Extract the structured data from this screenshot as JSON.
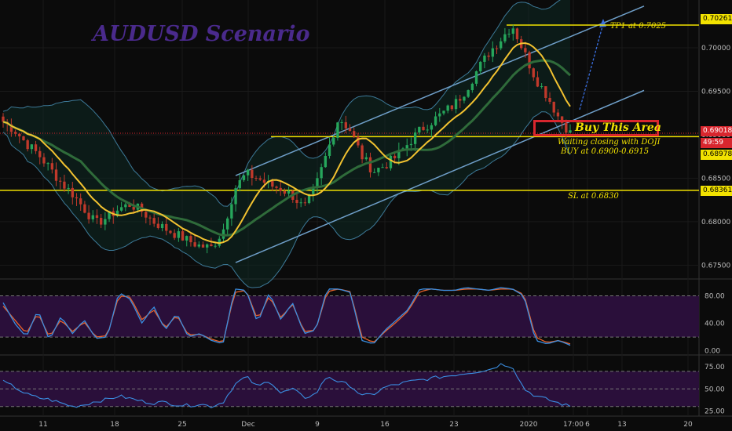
{
  "title": "AUDUSD Scenario",
  "annotations": {
    "tp1": "TP1 at 0.7025",
    "buy_area": "Buy This Area",
    "waiting": "Waiting closing with DOJI",
    "buy_range": "BUY at 0.6900-0.6915",
    "sl": "SL at 0.6830"
  },
  "price_labels": {
    "tp": "0.70261",
    "last": "0.69018",
    "timer": "49:59",
    "entry": "0.68978",
    "sl": "0.68361"
  },
  "colors": {
    "background": "#0b0b0b",
    "candle_up": "#26a65b",
    "candle_down": "#c0392b",
    "level_line": "#f2e200",
    "channel": "#6f9fc9",
    "bollinger": "#3d7a99",
    "ma_fast": "#f2c230",
    "ma_slow": "#2f6b3a",
    "stoch_k": "#3a8de0",
    "stoch_d": "#e8622c",
    "oscillator_bg": "#2a0f3a"
  },
  "chart_data": [
    {
      "type": "candlestick",
      "symbol": "AUDUSD",
      "y_axis_ticks": [
        "0.70000",
        "0.69500",
        "0.69000",
        "0.68500",
        "0.68000",
        "0.67500"
      ],
      "ylim": [
        0.6735,
        0.7055
      ],
      "x_axis_ticks": [
        "11",
        "18",
        "25",
        "Dec",
        "9",
        "16",
        "23",
        "2020",
        "6",
        "17:00",
        "13",
        "20"
      ],
      "levels": [
        {
          "label": "TP1 at 0.7025",
          "value": 0.70261
        },
        {
          "label": "BUY at 0.6900-0.6915",
          "value": 0.68978
        },
        {
          "label": "SL at 0.6830",
          "value": 0.68361
        }
      ],
      "last_price": 0.69018,
      "path_estimate": [
        0.6915,
        0.6905,
        0.689,
        0.6878,
        0.6862,
        0.6845,
        0.6832,
        0.6815,
        0.6798,
        0.6805,
        0.6815,
        0.682,
        0.6812,
        0.68,
        0.6792,
        0.6785,
        0.6778,
        0.6772,
        0.677,
        0.679,
        0.6838,
        0.6855,
        0.685,
        0.6842,
        0.6838,
        0.683,
        0.6815,
        0.684,
        0.688,
        0.692,
        0.6905,
        0.6875,
        0.6858,
        0.6865,
        0.6875,
        0.689,
        0.6905,
        0.6915,
        0.6925,
        0.6935,
        0.6952,
        0.6975,
        0.6995,
        0.701,
        0.7026,
        0.6995,
        0.6965,
        0.6945,
        0.692,
        0.6902
      ]
    },
    {
      "type": "line",
      "name": "Stochastic",
      "y_axis_ticks": [
        "80.00",
        "40.00",
        "0.00"
      ],
      "ylim": [
        -5,
        100
      ],
      "bands": [
        80,
        20
      ],
      "k_estimate": [
        70,
        40,
        20,
        60,
        15,
        50,
        25,
        45,
        18,
        20,
        85,
        75,
        40,
        65,
        30,
        55,
        20,
        25,
        15,
        10,
        90,
        88,
        40,
        85,
        45,
        70,
        25,
        30,
        90,
        90,
        85,
        15,
        10,
        30,
        45,
        60,
        90,
        90,
        88,
        88,
        92,
        90,
        88,
        92,
        90,
        80,
        15,
        10,
        15,
        8
      ],
      "d_estimate": [
        65,
        45,
        25,
        55,
        20,
        45,
        28,
        42,
        20,
        22,
        80,
        78,
        45,
        60,
        33,
        52,
        23,
        24,
        17,
        12,
        85,
        88,
        45,
        80,
        48,
        68,
        28,
        30,
        86,
        90,
        86,
        20,
        12,
        28,
        42,
        58,
        86,
        90,
        88,
        88,
        90,
        90,
        88,
        90,
        90,
        82,
        20,
        12,
        15,
        10
      ]
    },
    {
      "type": "line",
      "name": "RSI",
      "y_axis_ticks": [
        "75.00",
        "50.00",
        "25.00"
      ],
      "ylim": [
        20,
        85
      ],
      "bands": [
        70,
        30
      ],
      "values_estimate": [
        58,
        52,
        44,
        40,
        38,
        34,
        30,
        32,
        36,
        38,
        42,
        39,
        36,
        34,
        35,
        32,
        31,
        33,
        30,
        35,
        55,
        64,
        52,
        60,
        45,
        50,
        40,
        44,
        65,
        58,
        54,
        42,
        44,
        52,
        55,
        58,
        60,
        62,
        64,
        66,
        68,
        70,
        72,
        78,
        76,
        50,
        42,
        38,
        34,
        30
      ]
    }
  ]
}
